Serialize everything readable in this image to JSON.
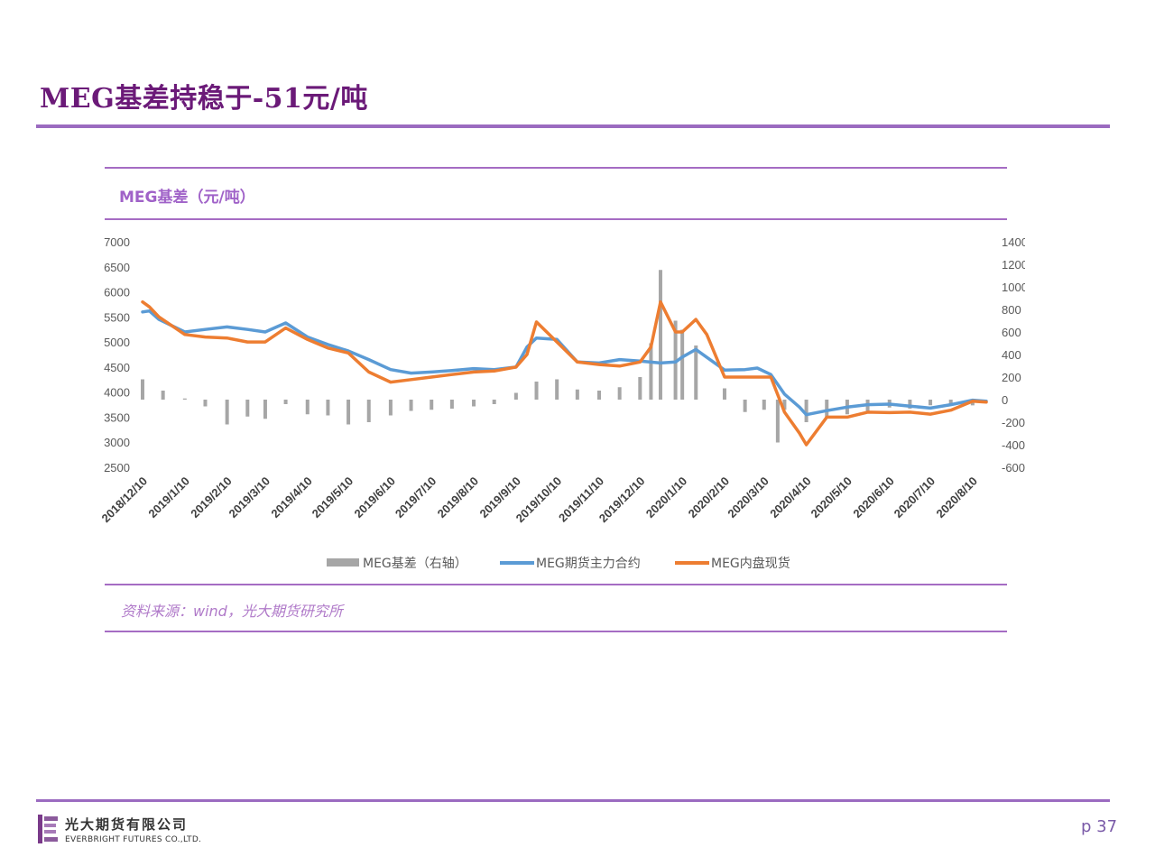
{
  "page": {
    "title": "MEG基差持稳于-51元/吨",
    "source": "资料来源：wind，光大期货研究所",
    "logo_cn": "光大期货有限公司",
    "logo_en": "EVERBRIGHT FUTURES CO.,LTD.",
    "page_number": "p 37",
    "colors": {
      "title": "#6b1a78",
      "rule": "#9b6bc0",
      "accent": "#a062c8"
    }
  },
  "chart_data": {
    "type": "line",
    "title": "MEG基差（元/吨）",
    "x_tick_labels": [
      "2018/12/10",
      "2019/1/10",
      "2019/2/10",
      "2019/3/10",
      "2019/4/10",
      "2019/5/10",
      "2019/6/10",
      "2019/7/10",
      "2019/8/10",
      "2019/9/10",
      "2019/10/10",
      "2019/11/10",
      "2019/12/10",
      "2020/1/10",
      "2020/2/10",
      "2020/3/10",
      "2020/4/10",
      "2020/5/10",
      "2020/6/10",
      "2020/7/10",
      "2020/8/10"
    ],
    "y_left": {
      "min": 2500,
      "max": 7000,
      "ticks": [
        2500,
        3000,
        3500,
        4000,
        4500,
        5000,
        5500,
        6000,
        6500,
        7000
      ]
    },
    "y_right": {
      "min": -600,
      "max": 1400,
      "ticks": [
        -600,
        -400,
        -200,
        0,
        200,
        400,
        600,
        800,
        1000,
        1200,
        1400
      ]
    },
    "grid": false,
    "legend_position": "bottom",
    "series": [
      {
        "name": "MEG基差（右轴）",
        "type": "bar",
        "axis": "right",
        "color": "#a6a6a6",
        "x": [
          "2018/12/10",
          "2018/12/25",
          "2019/1/10",
          "2019/1/25",
          "2019/2/10",
          "2019/2/25",
          "2019/3/10",
          "2019/3/25",
          "2019/4/10",
          "2019/4/25",
          "2019/5/10",
          "2019/5/25",
          "2019/6/10",
          "2019/6/25",
          "2019/7/10",
          "2019/7/25",
          "2019/8/10",
          "2019/8/25",
          "2019/9/10",
          "2019/9/25",
          "2019/10/10",
          "2019/10/25",
          "2019/11/10",
          "2019/11/25",
          "2019/12/10",
          "2019/12/18",
          "2019/12/25",
          "2020/1/5",
          "2020/1/10",
          "2020/1/20",
          "2020/2/10",
          "2020/2/25",
          "2020/3/10",
          "2020/3/20",
          "2020/3/25",
          "2020/4/10",
          "2020/4/25",
          "2020/5/10",
          "2020/5/25",
          "2020/6/10",
          "2020/6/25",
          "2020/7/10",
          "2020/7/25",
          "2020/8/10"
        ],
        "values": [
          180,
          80,
          10,
          -60,
          -220,
          -150,
          -170,
          -40,
          -130,
          -140,
          -220,
          -200,
          -140,
          -100,
          -90,
          -80,
          -60,
          -40,
          60,
          160,
          180,
          90,
          80,
          110,
          200,
          500,
          1150,
          700,
          620,
          480,
          100,
          -110,
          -90,
          -380,
          -90,
          -200,
          -160,
          -130,
          -100,
          -70,
          -80,
          -50,
          -40,
          -51
        ]
      },
      {
        "name": "MEG期货主力合约",
        "type": "line",
        "axis": "left",
        "color": "#5b9bd5",
        "x": [
          "2018/12/10",
          "2018/12/15",
          "2018/12/22",
          "2019/1/10",
          "2019/1/25",
          "2019/2/10",
          "2019/2/25",
          "2019/3/10",
          "2019/3/25",
          "2019/4/10",
          "2019/4/25",
          "2019/5/10",
          "2019/5/25",
          "2019/6/10",
          "2019/6/25",
          "2019/7/10",
          "2019/7/25",
          "2019/8/10",
          "2019/8/25",
          "2019/9/10",
          "2019/9/18",
          "2019/9/25",
          "2019/10/10",
          "2019/10/25",
          "2019/11/10",
          "2019/11/25",
          "2019/12/10",
          "2019/12/25",
          "2020/1/5",
          "2020/1/10",
          "2020/1/20",
          "2020/2/10",
          "2020/2/25",
          "2020/3/5",
          "2020/3/15",
          "2020/3/25",
          "2020/4/5",
          "2020/4/10",
          "2020/4/25",
          "2020/5/10",
          "2020/5/25",
          "2020/6/10",
          "2020/6/25",
          "2020/7/10",
          "2020/7/25",
          "2020/8/10",
          "2020/8/20"
        ],
        "values": [
          5600,
          5620,
          5450,
          5200,
          5250,
          5300,
          5250,
          5200,
          5380,
          5100,
          4950,
          4820,
          4650,
          4450,
          4380,
          4400,
          4430,
          4470,
          4450,
          4500,
          4900,
          5080,
          5050,
          4600,
          4580,
          4650,
          4620,
          4580,
          4600,
          4700,
          4850,
          4440,
          4450,
          4480,
          4350,
          3960,
          3700,
          3550,
          3630,
          3700,
          3750,
          3760,
          3720,
          3680,
          3750,
          3840,
          3820
        ]
      },
      {
        "name": "MEG内盘现货",
        "type": "line",
        "axis": "left",
        "color": "#ed7d31",
        "x": [
          "2018/12/10",
          "2018/12/15",
          "2018/12/22",
          "2019/1/10",
          "2019/1/25",
          "2019/2/10",
          "2019/2/25",
          "2019/3/10",
          "2019/3/25",
          "2019/4/10",
          "2019/4/25",
          "2019/5/10",
          "2019/5/25",
          "2019/6/10",
          "2019/6/25",
          "2019/7/10",
          "2019/7/25",
          "2019/8/10",
          "2019/8/25",
          "2019/9/10",
          "2019/9/18",
          "2019/9/25",
          "2019/10/10",
          "2019/10/25",
          "2019/11/10",
          "2019/11/25",
          "2019/12/10",
          "2019/12/18",
          "2019/12/25",
          "2020/1/5",
          "2020/1/10",
          "2020/1/20",
          "2020/1/28",
          "2020/2/10",
          "2020/2/25",
          "2020/3/5",
          "2020/3/15",
          "2020/3/25",
          "2020/4/5",
          "2020/4/10",
          "2020/4/25",
          "2020/5/10",
          "2020/5/25",
          "2020/6/10",
          "2020/6/25",
          "2020/7/10",
          "2020/7/25",
          "2020/8/10",
          "2020/8/20"
        ],
        "values": [
          5800,
          5700,
          5500,
          5150,
          5100,
          5080,
          5000,
          5000,
          5280,
          5050,
          4880,
          4780,
          4400,
          4200,
          4250,
          4300,
          4350,
          4400,
          4420,
          4500,
          4750,
          5400,
          5000,
          4600,
          4550,
          4520,
          4600,
          4900,
          5800,
          5200,
          5200,
          5450,
          5150,
          4300,
          4300,
          4300,
          4300,
          3600,
          3180,
          2950,
          3500,
          3500,
          3600,
          3590,
          3600,
          3560,
          3640,
          3820,
          3800
        ]
      }
    ]
  }
}
